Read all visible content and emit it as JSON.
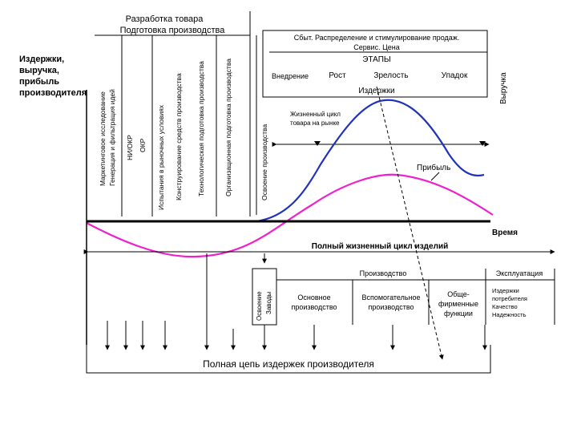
{
  "header": {
    "title": "Разработка товара",
    "subtitle": "Подготовка производства"
  },
  "left_axis_label": [
    "Издержки,",
    "выручка,",
    "прибыль",
    "производителя"
  ],
  "right_axis_label": "Выручка",
  "stages_vertical": [
    "Маркетинговое исследование",
    "Генерация и фильтрация идей",
    "НИ/ОКР",
    "ОКР",
    "Испытания в рыночных условиях",
    "Конструирование средств производства",
    "Технологическая подготовка производства",
    "Организационная подготовка производства",
    "Освоение производства"
  ],
  "sales_box": {
    "line1": "Сбыт. Распределение и стимулирование продаж.",
    "line2": "Сервис. Цена",
    "stage_title": "ЭТАПЫ",
    "phases": [
      "Внедрение",
      "Рост",
      "Зрелость",
      "Упадок"
    ],
    "costs_label": "Издержки"
  },
  "market_cycle_label": [
    "Жизненный цикл",
    "товара на рынке"
  ],
  "profit_label": "Прибыль",
  "time_label": "Время",
  "full_cycle_label": "Полный жизненный цикл изделий",
  "bottom": {
    "development_vertical": [
      "Освоение",
      "Заводы"
    ],
    "production": "Производство",
    "exploitation": "Эксплуатация",
    "main_production": [
      "Основное",
      "производство"
    ],
    "aux_production": [
      "Вспомогательное",
      "производство"
    ],
    "company_functions": [
      "Обще-",
      "фирменные",
      "функции"
    ],
    "consumer_costs": [
      "Издержки",
      "потребителя",
      "Качество",
      "Надежность"
    ]
  },
  "footer": "Полная цепь издержек производителя",
  "colors": {
    "revenue": "#2233bb",
    "profit": "#ee22cc",
    "lines": "#000000"
  }
}
